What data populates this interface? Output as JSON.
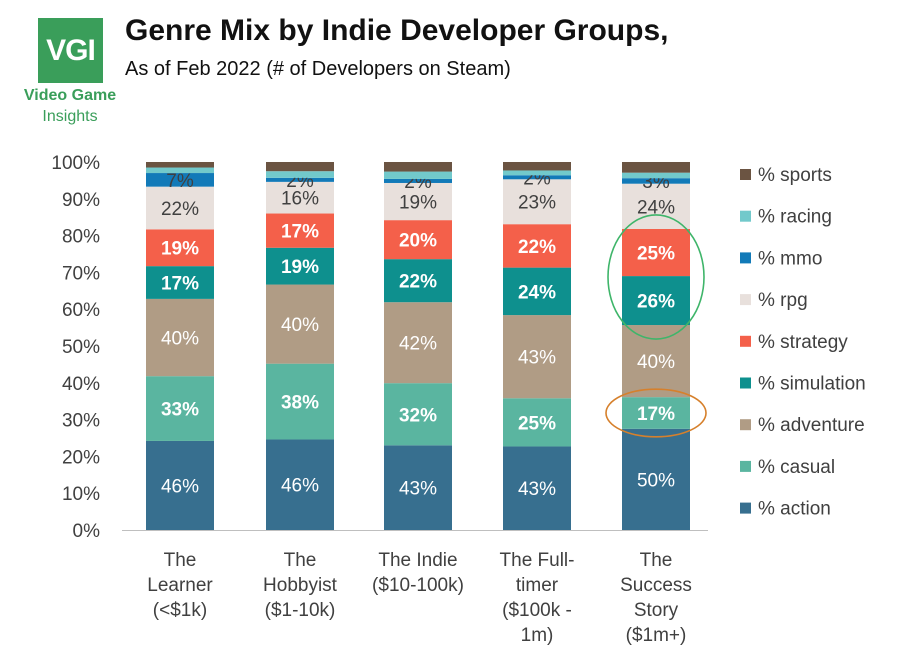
{
  "logo": {
    "mark": "VGI",
    "line1": "Video Game",
    "line2": "Insights"
  },
  "colors": {
    "action": "#376f8f",
    "casual": "#5ab5a0",
    "adventure": "#b09c85",
    "simulation": "#0e908e",
    "strategy": "#f4604a",
    "rpg": "#e8e0dc",
    "mmo": "#127ab8",
    "racing": "#72c9cb",
    "sports": "#6b5442",
    "brand": "#3a9e5a",
    "highlight_green": "#3fb56a",
    "highlight_orange": "#d6802c"
  },
  "chart_data": {
    "type": "bar",
    "stacked": true,
    "title": "Genre Mix by Indie Developer Groups,",
    "subtitle": "As of Feb 2022 (# of Developers on Steam)",
    "categories": [
      [
        "The",
        "Learner",
        "(<$1k)"
      ],
      [
        "The",
        "Hobbyist",
        "($1-10k)"
      ],
      [
        "The Indie",
        "($10-100k)"
      ],
      [
        "The Full-",
        "timer",
        "($100k -",
        "1m)"
      ],
      [
        "The",
        "Success",
        "Story",
        "($1m+)"
      ]
    ],
    "series": [
      {
        "name": "% action",
        "key": "action",
        "values": [
          24.2,
          24.6,
          23.0,
          22.7,
          27.5
        ],
        "labels": [
          "46%",
          "46%",
          "43%",
          "43%",
          "50%"
        ],
        "label_color": "#ffffff",
        "bold": false
      },
      {
        "name": "% casual",
        "key": "casual",
        "values": [
          17.6,
          20.6,
          16.9,
          13.1,
          8.6
        ],
        "labels": [
          "33%",
          "38%",
          "32%",
          "25%",
          "17%"
        ],
        "label_color": "#ffffff",
        "bold": true
      },
      {
        "name": "% adventure",
        "key": "adventure",
        "values": [
          21.0,
          21.5,
          22.0,
          22.6,
          19.6
        ],
        "labels": [
          "40%",
          "40%",
          "42%",
          "43%",
          "40%"
        ],
        "label_color": "#ffffff",
        "bold": false
      },
      {
        "name": "% simulation",
        "key": "simulation",
        "values": [
          8.9,
          10.0,
          11.7,
          12.9,
          13.3
        ],
        "labels": [
          "17%",
          "19%",
          "22%",
          "24%",
          "26%"
        ],
        "label_color": "#ffffff",
        "bold": true
      },
      {
        "name": "% strategy",
        "key": "strategy",
        "values": [
          10.0,
          9.3,
          10.6,
          11.8,
          12.8
        ],
        "labels": [
          "19%",
          "17%",
          "20%",
          "22%",
          "25%"
        ],
        "label_color": "#ffffff",
        "bold": true
      },
      {
        "name": "% rpg",
        "key": "rpg",
        "values": [
          11.6,
          8.6,
          10.1,
          12.2,
          12.3
        ],
        "labels": [
          "22%",
          "16%",
          "19%",
          "23%",
          "24%"
        ],
        "label_color": "#404040",
        "bold": false
      },
      {
        "name": "% mmo",
        "key": "mmo",
        "values": [
          3.7,
          1.1,
          1.1,
          1.1,
          1.5
        ],
        "labels": [
          "7%",
          "2%",
          "2%",
          "2%",
          "3%"
        ],
        "label_color": "#404040",
        "bold": false
      },
      {
        "name": "% racing",
        "key": "racing",
        "values": [
          1.5,
          1.8,
          2.0,
          1.3,
          1.5
        ],
        "labels": [
          "",
          "",
          "",
          "",
          ""
        ],
        "label_color": "#404040",
        "bold": false
      },
      {
        "name": "% sports",
        "key": "sports",
        "values": [
          1.5,
          2.5,
          2.6,
          2.3,
          2.9
        ],
        "labels": [
          "",
          "",
          "",
          "",
          ""
        ],
        "label_color": "#404040",
        "bold": false
      }
    ],
    "yticks": [
      "0%",
      "10%",
      "20%",
      "30%",
      "40%",
      "50%",
      "60%",
      "70%",
      "80%",
      "90%",
      "100%"
    ],
    "ylim": [
      0,
      100
    ],
    "grid": false,
    "legend_position": "right",
    "highlights": [
      {
        "category_index": 4,
        "series": [
          "strategy",
          "simulation"
        ],
        "shape": "ellipse",
        "color_key": "highlight_green"
      },
      {
        "category_index": 4,
        "series": [
          "casual"
        ],
        "shape": "ellipse",
        "color_key": "highlight_orange"
      }
    ]
  }
}
